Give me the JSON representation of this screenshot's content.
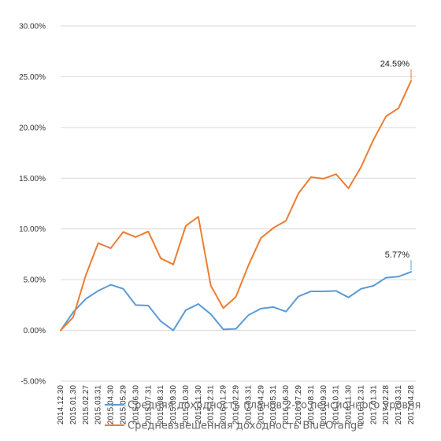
{
  "chart_data": {
    "type": "line",
    "x": [
      "2014.12.30",
      "2015.01.30",
      "2015.02.27",
      "2015.03.31",
      "2015.04.30",
      "2015.05.29",
      "2015.06.30",
      "2015.07.31",
      "2015.08.31",
      "2015.09.30",
      "2015.10.30",
      "2015.11.30",
      "2015.12.31",
      "2016.01.29",
      "2016.02.29",
      "2016.03.31",
      "2016.04.29",
      "2016.05.31",
      "2016.06.30",
      "2016.07.29",
      "2016.08.31",
      "2016.09.30",
      "2016.10.31",
      "2016.11.30",
      "2016.12.31",
      "2017.01.31",
      "2017.02.28",
      "2017.03.31",
      "2017.04.28"
    ],
    "y_ticks": [
      "-5.00%",
      "0.00%",
      "5.00%",
      "10.00%",
      "15.00%",
      "20.00%",
      "25.00%",
      "30.00%"
    ],
    "ylim": [
      -5,
      30
    ],
    "grid": true,
    "legend_position": "bottom",
    "series": [
      {
        "name": "Средняя доходность планов 2-го пенсионного уровня",
        "color": "#5b9bd5",
        "values": [
          0.0,
          1.8,
          3.1,
          3.9,
          4.5,
          4.1,
          2.5,
          2.45,
          0.9,
          0.0,
          2.0,
          2.6,
          1.6,
          0.1,
          0.15,
          1.5,
          2.15,
          2.3,
          1.85,
          3.35,
          3.85,
          3.85,
          3.9,
          3.25,
          4.1,
          4.4,
          5.2,
          5.3,
          5.77
        ]
      },
      {
        "name": "Средневзвешенная доходность BlueOrange",
        "color": "#ed7d31",
        "values": [
          0.0,
          1.3,
          5.4,
          8.6,
          8.1,
          9.7,
          9.2,
          9.75,
          7.1,
          6.5,
          10.3,
          11.2,
          4.4,
          2.2,
          3.3,
          6.4,
          9.1,
          10.1,
          10.8,
          13.5,
          15.1,
          14.95,
          15.4,
          14.0,
          16.1,
          18.8,
          21.1,
          21.9,
          24.59
        ]
      }
    ],
    "end_labels": [
      "5.77%",
      "24.59%"
    ]
  }
}
